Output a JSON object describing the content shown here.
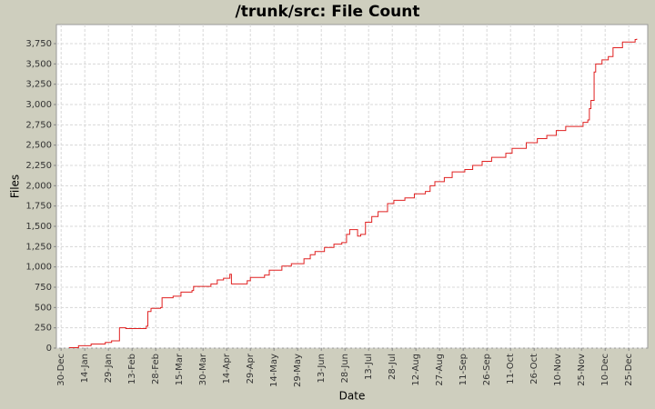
{
  "chart_data": {
    "type": "step-line",
    "title": "/trunk/src: File Count",
    "x_label": "Date",
    "y_label": "Files",
    "x": [
      5,
      11,
      19,
      28,
      32,
      37,
      41,
      54,
      55,
      57,
      63,
      64,
      71,
      76,
      83,
      84,
      95,
      99,
      103,
      107,
      108,
      118,
      120,
      129,
      132,
      140,
      146,
      154,
      158,
      161,
      167,
      173,
      178,
      181,
      183,
      188,
      190,
      193,
      197,
      201,
      207,
      211,
      218,
      224,
      231,
      234,
      237,
      243,
      248,
      256,
      261,
      267,
      273,
      282,
      286,
      295,
      302,
      308,
      314,
      320,
      331,
      334,
      335,
      336,
      338,
      339,
      343,
      347,
      350,
      356,
      364,
      365
    ],
    "series": [
      {
        "name": "Files",
        "color": "#e02020",
        "values": [
          5,
          30,
          50,
          70,
          90,
          250,
          240,
          270,
          450,
          490,
          500,
          620,
          640,
          690,
          710,
          760,
          790,
          840,
          860,
          910,
          790,
          830,
          870,
          900,
          960,
          1010,
          1040,
          1100,
          1150,
          1190,
          1240,
          1280,
          1300,
          1400,
          1460,
          1380,
          1400,
          1550,
          1620,
          1680,
          1780,
          1820,
          1850,
          1900,
          1930,
          2000,
          2050,
          2100,
          2170,
          2200,
          2250,
          2300,
          2350,
          2400,
          2460,
          2530,
          2580,
          2620,
          2680,
          2730,
          2780,
          2810,
          2950,
          3050,
          3400,
          3500,
          3550,
          3590,
          3700,
          3770,
          3800,
          3810
        ]
      }
    ],
    "xlim": [
      -3,
      372
    ],
    "xticks": [
      {
        "value": 0,
        "label": "30-Dec"
      },
      {
        "value": 15,
        "label": "14-Jan"
      },
      {
        "value": 30,
        "label": "29-Jan"
      },
      {
        "value": 45,
        "label": "13-Feb"
      },
      {
        "value": 60,
        "label": "28-Feb"
      },
      {
        "value": 75,
        "label": "15-Mar"
      },
      {
        "value": 90,
        "label": "30-Mar"
      },
      {
        "value": 105,
        "label": "14-Apr"
      },
      {
        "value": 120,
        "label": "29-Apr"
      },
      {
        "value": 135,
        "label": "14-May"
      },
      {
        "value": 150,
        "label": "29-May"
      },
      {
        "value": 165,
        "label": "13-Jun"
      },
      {
        "value": 180,
        "label": "28-Jun"
      },
      {
        "value": 195,
        "label": "13-Jul"
      },
      {
        "value": 210,
        "label": "28-Jul"
      },
      {
        "value": 225,
        "label": "12-Aug"
      },
      {
        "value": 240,
        "label": "27-Aug"
      },
      {
        "value": 255,
        "label": "11-Sep"
      },
      {
        "value": 270,
        "label": "26-Sep"
      },
      {
        "value": 285,
        "label": "11-Oct"
      },
      {
        "value": 300,
        "label": "26-Oct"
      },
      {
        "value": 315,
        "label": "10-Nov"
      },
      {
        "value": 330,
        "label": "25-Nov"
      },
      {
        "value": 345,
        "label": "10-Dec"
      },
      {
        "value": 360,
        "label": "25-Dec"
      }
    ],
    "ylim": [
      0,
      3985
    ],
    "yticks": [
      0,
      250,
      500,
      750,
      {
        "value": 1000,
        "label": "1,000"
      },
      {
        "value": 1250,
        "label": "1,250"
      },
      {
        "value": 1500,
        "label": "1,500"
      },
      {
        "value": 1750,
        "label": "1,750"
      },
      {
        "value": 2000,
        "label": "2,000"
      },
      {
        "value": 2250,
        "label": "2,250"
      },
      {
        "value": 2500,
        "label": "2,500"
      },
      {
        "value": 2750,
        "label": "2,750"
      },
      {
        "value": 3000,
        "label": "3,000"
      },
      {
        "value": 3250,
        "label": "3,250"
      },
      {
        "value": 3500,
        "label": "3,500"
      },
      {
        "value": 3750,
        "label": "3,750"
      }
    ],
    "grid": true
  }
}
